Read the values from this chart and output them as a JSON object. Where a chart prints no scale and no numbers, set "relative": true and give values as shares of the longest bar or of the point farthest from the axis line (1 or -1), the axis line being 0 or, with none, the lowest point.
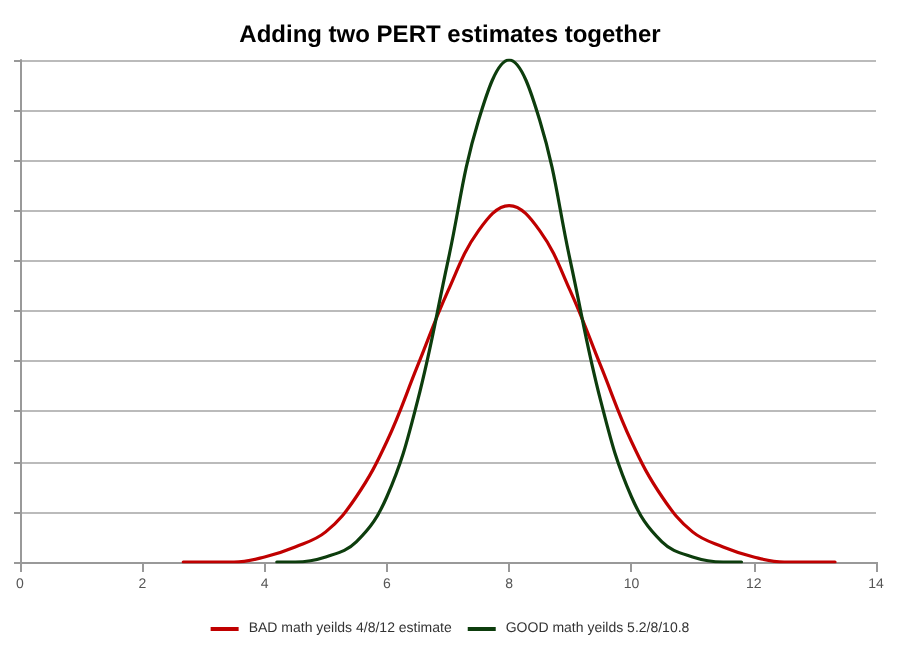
{
  "chart_data": {
    "type": "line",
    "title": "Adding two PERT estimates together",
    "relative": true,
    "xlim": [
      0,
      14
    ],
    "xticks": [
      0,
      2,
      4,
      6,
      8,
      10,
      12,
      14
    ],
    "grid": "y",
    "legend": "bottom",
    "marker": "none",
    "line_style": "solid",
    "series": [
      {
        "name": "BAD math yeilds 4/8/12 estimate",
        "color": "#c00000",
        "x": [
          2.67,
          3,
          3.5,
          4,
          4.5,
          5,
          5.5,
          6,
          6.5,
          7,
          7.5,
          8,
          8.5,
          9,
          9.5,
          10,
          10.5,
          11,
          11.5,
          12,
          12.5,
          13,
          13.33
        ],
        "values": [
          0,
          0,
          0,
          0.01,
          0.03,
          0.06,
          0.13,
          0.24,
          0.39,
          0.54,
          0.66,
          0.71,
          0.66,
          0.54,
          0.39,
          0.24,
          0.13,
          0.06,
          0.03,
          0.01,
          0,
          0,
          0
        ]
      },
      {
        "name": "GOOD math yeilds 5.2/8/10.8",
        "color": "#0d3d0d",
        "x": [
          4.2,
          4.5,
          5,
          5.5,
          6,
          6.5,
          7,
          7.5,
          8,
          8.5,
          9,
          9.5,
          10,
          10.5,
          11,
          11.5,
          11.8
        ],
        "values": [
          0,
          0,
          0.01,
          0.04,
          0.13,
          0.32,
          0.6,
          0.88,
          1,
          0.88,
          0.6,
          0.32,
          0.13,
          0.04,
          0.01,
          0,
          0
        ]
      }
    ]
  }
}
